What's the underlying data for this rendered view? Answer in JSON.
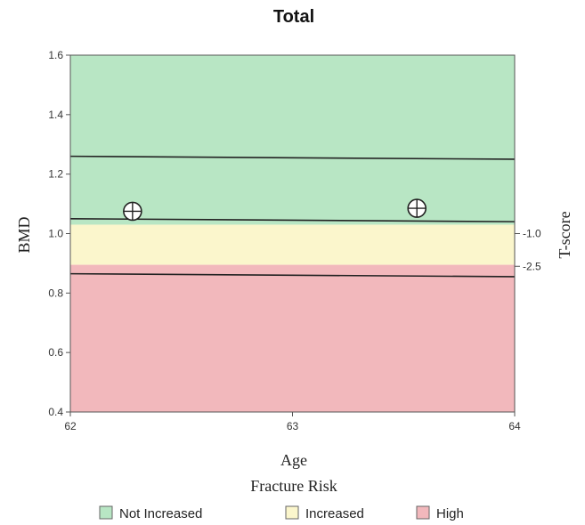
{
  "chart_data": {
    "type": "scatter",
    "title": "Total",
    "xlabel": "Age",
    "ylabel": "BMD",
    "y2label": "T-score",
    "xlim": [
      62,
      64
    ],
    "ylim": [
      0.4,
      1.6
    ],
    "x_ticks": [
      62,
      63,
      64
    ],
    "y_ticks": [
      "0.4",
      "0.6",
      "0.8",
      "1.0",
      "1.2",
      "1.4",
      "1.6"
    ],
    "t_score_ticks": [
      {
        "label": "-1.0",
        "bmd": 1.0
      },
      {
        "label": "-2.5",
        "bmd": 0.89
      }
    ],
    "zones": [
      {
        "name": "Not Increased",
        "from": 1.03,
        "to": 1.6,
        "color": "#b8e6c4"
      },
      {
        "name": "Increased",
        "from": 0.895,
        "to": 1.03,
        "color": "#fbf6cc"
      },
      {
        "name": "High",
        "from": 0.4,
        "to": 0.895,
        "color": "#f2b8bc"
      }
    ],
    "reference_lines": [
      {
        "x": [
          62,
          64
        ],
        "y": [
          1.26,
          1.25
        ]
      },
      {
        "x": [
          62,
          64
        ],
        "y": [
          1.05,
          1.04
        ]
      },
      {
        "x": [
          62,
          64
        ],
        "y": [
          0.865,
          0.855
        ]
      }
    ],
    "series": [
      {
        "x": [
          62.28,
          63.56
        ],
        "y": [
          1.075,
          1.085
        ]
      }
    ],
    "legend": {
      "title": "Fracture Risk",
      "position": "bottom",
      "items": [
        {
          "label": "Not Increased",
          "color": "#b8e6c4"
        },
        {
          "label": "Increased",
          "color": "#fbf6cc"
        },
        {
          "label": "High",
          "color": "#f2b8bc"
        }
      ]
    }
  }
}
